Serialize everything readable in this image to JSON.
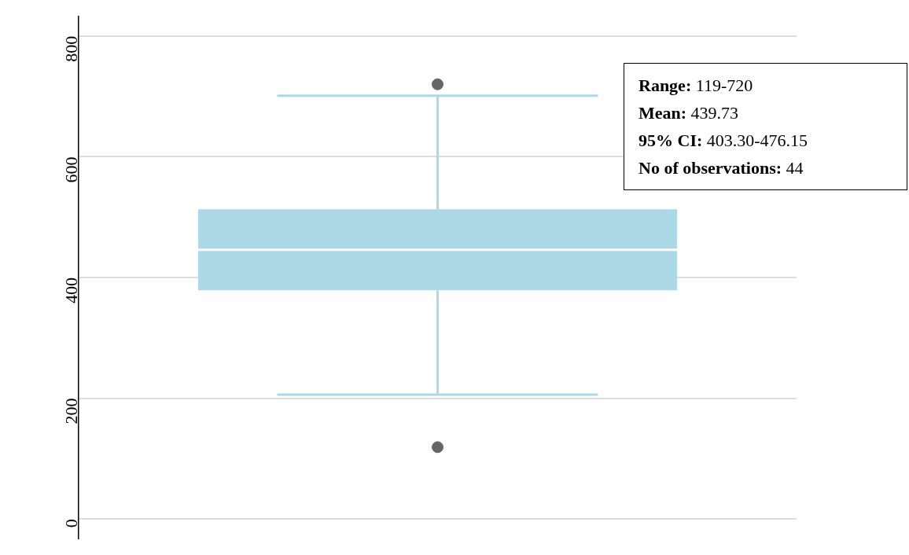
{
  "chart_data": {
    "type": "box",
    "categories": [
      null
    ],
    "boxes": [
      {
        "low": 206,
        "q1": 379,
        "median": 446,
        "q3": 513,
        "high": 701,
        "outliers": [
          119,
          720
        ]
      }
    ],
    "color": "#add8e6",
    "ylim": [
      -32,
      832
    ],
    "yticks": [
      0,
      200,
      400,
      600,
      800
    ],
    "grid": "y",
    "tick_labels": "y",
    "annotations": [
      "Range: 119-720",
      "Mean: 439.73",
      "95% CI: 403.30-476.15",
      "No of observations: 44"
    ]
  }
}
